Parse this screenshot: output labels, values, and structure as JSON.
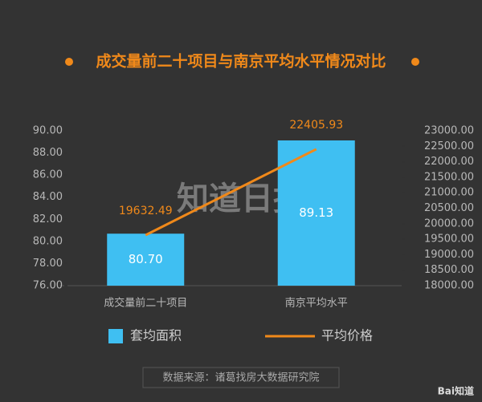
{
  "chart_data": {
    "type": "bar-line",
    "title": "成交量前二十项目与南京平均水平情况对比",
    "categories": [
      "成交量前二十项目",
      "南京平均水平"
    ],
    "series": [
      {
        "name": "套均面积",
        "type": "bar",
        "color": "#3fbff2",
        "values": [
          80.7,
          89.13
        ],
        "value_labels": [
          "80.70",
          "89.13"
        ]
      },
      {
        "name": "平均价格",
        "type": "line",
        "axis": "y2",
        "color": "#f0891a",
        "values": [
          19632.49,
          22405.93
        ]
      }
    ],
    "ylim": [
      76,
      90
    ],
    "yticks": [
      {
        "value": 76,
        "label": "76.00"
      },
      {
        "value": 78,
        "label": "78.00"
      },
      {
        "value": 80,
        "label": "80.00"
      },
      {
        "value": 82,
        "label": "82.00"
      },
      {
        "value": 84,
        "label": "84.00"
      },
      {
        "value": 86,
        "label": "86.00"
      },
      {
        "value": 88,
        "label": "88.00"
      },
      {
        "value": 90,
        "label": "90.00"
      }
    ],
    "y2lim": [
      18000,
      23000
    ],
    "y2ticks": [
      {
        "value": 18000,
        "label": "18000.00"
      },
      {
        "value": 18500,
        "label": "18500.00"
      },
      {
        "value": 19000,
        "label": "19000.00"
      },
      {
        "value": 19500,
        "label": "19500.00"
      },
      {
        "value": 20000,
        "label": "20000.00"
      },
      {
        "value": 20500,
        "label": "20500.00"
      },
      {
        "value": 21000,
        "label": "21000.00"
      },
      {
        "value": 21500,
        "label": "21500.00"
      },
      {
        "value": 22000,
        "label": "22000.00"
      },
      {
        "value": 22500,
        "label": "22500.00"
      },
      {
        "value": 23000,
        "label": "23000.00"
      }
    ],
    "source": "数据来源：诸葛找房大数据研究院",
    "watermark": "知道日报",
    "logo": "Bai知道"
  }
}
